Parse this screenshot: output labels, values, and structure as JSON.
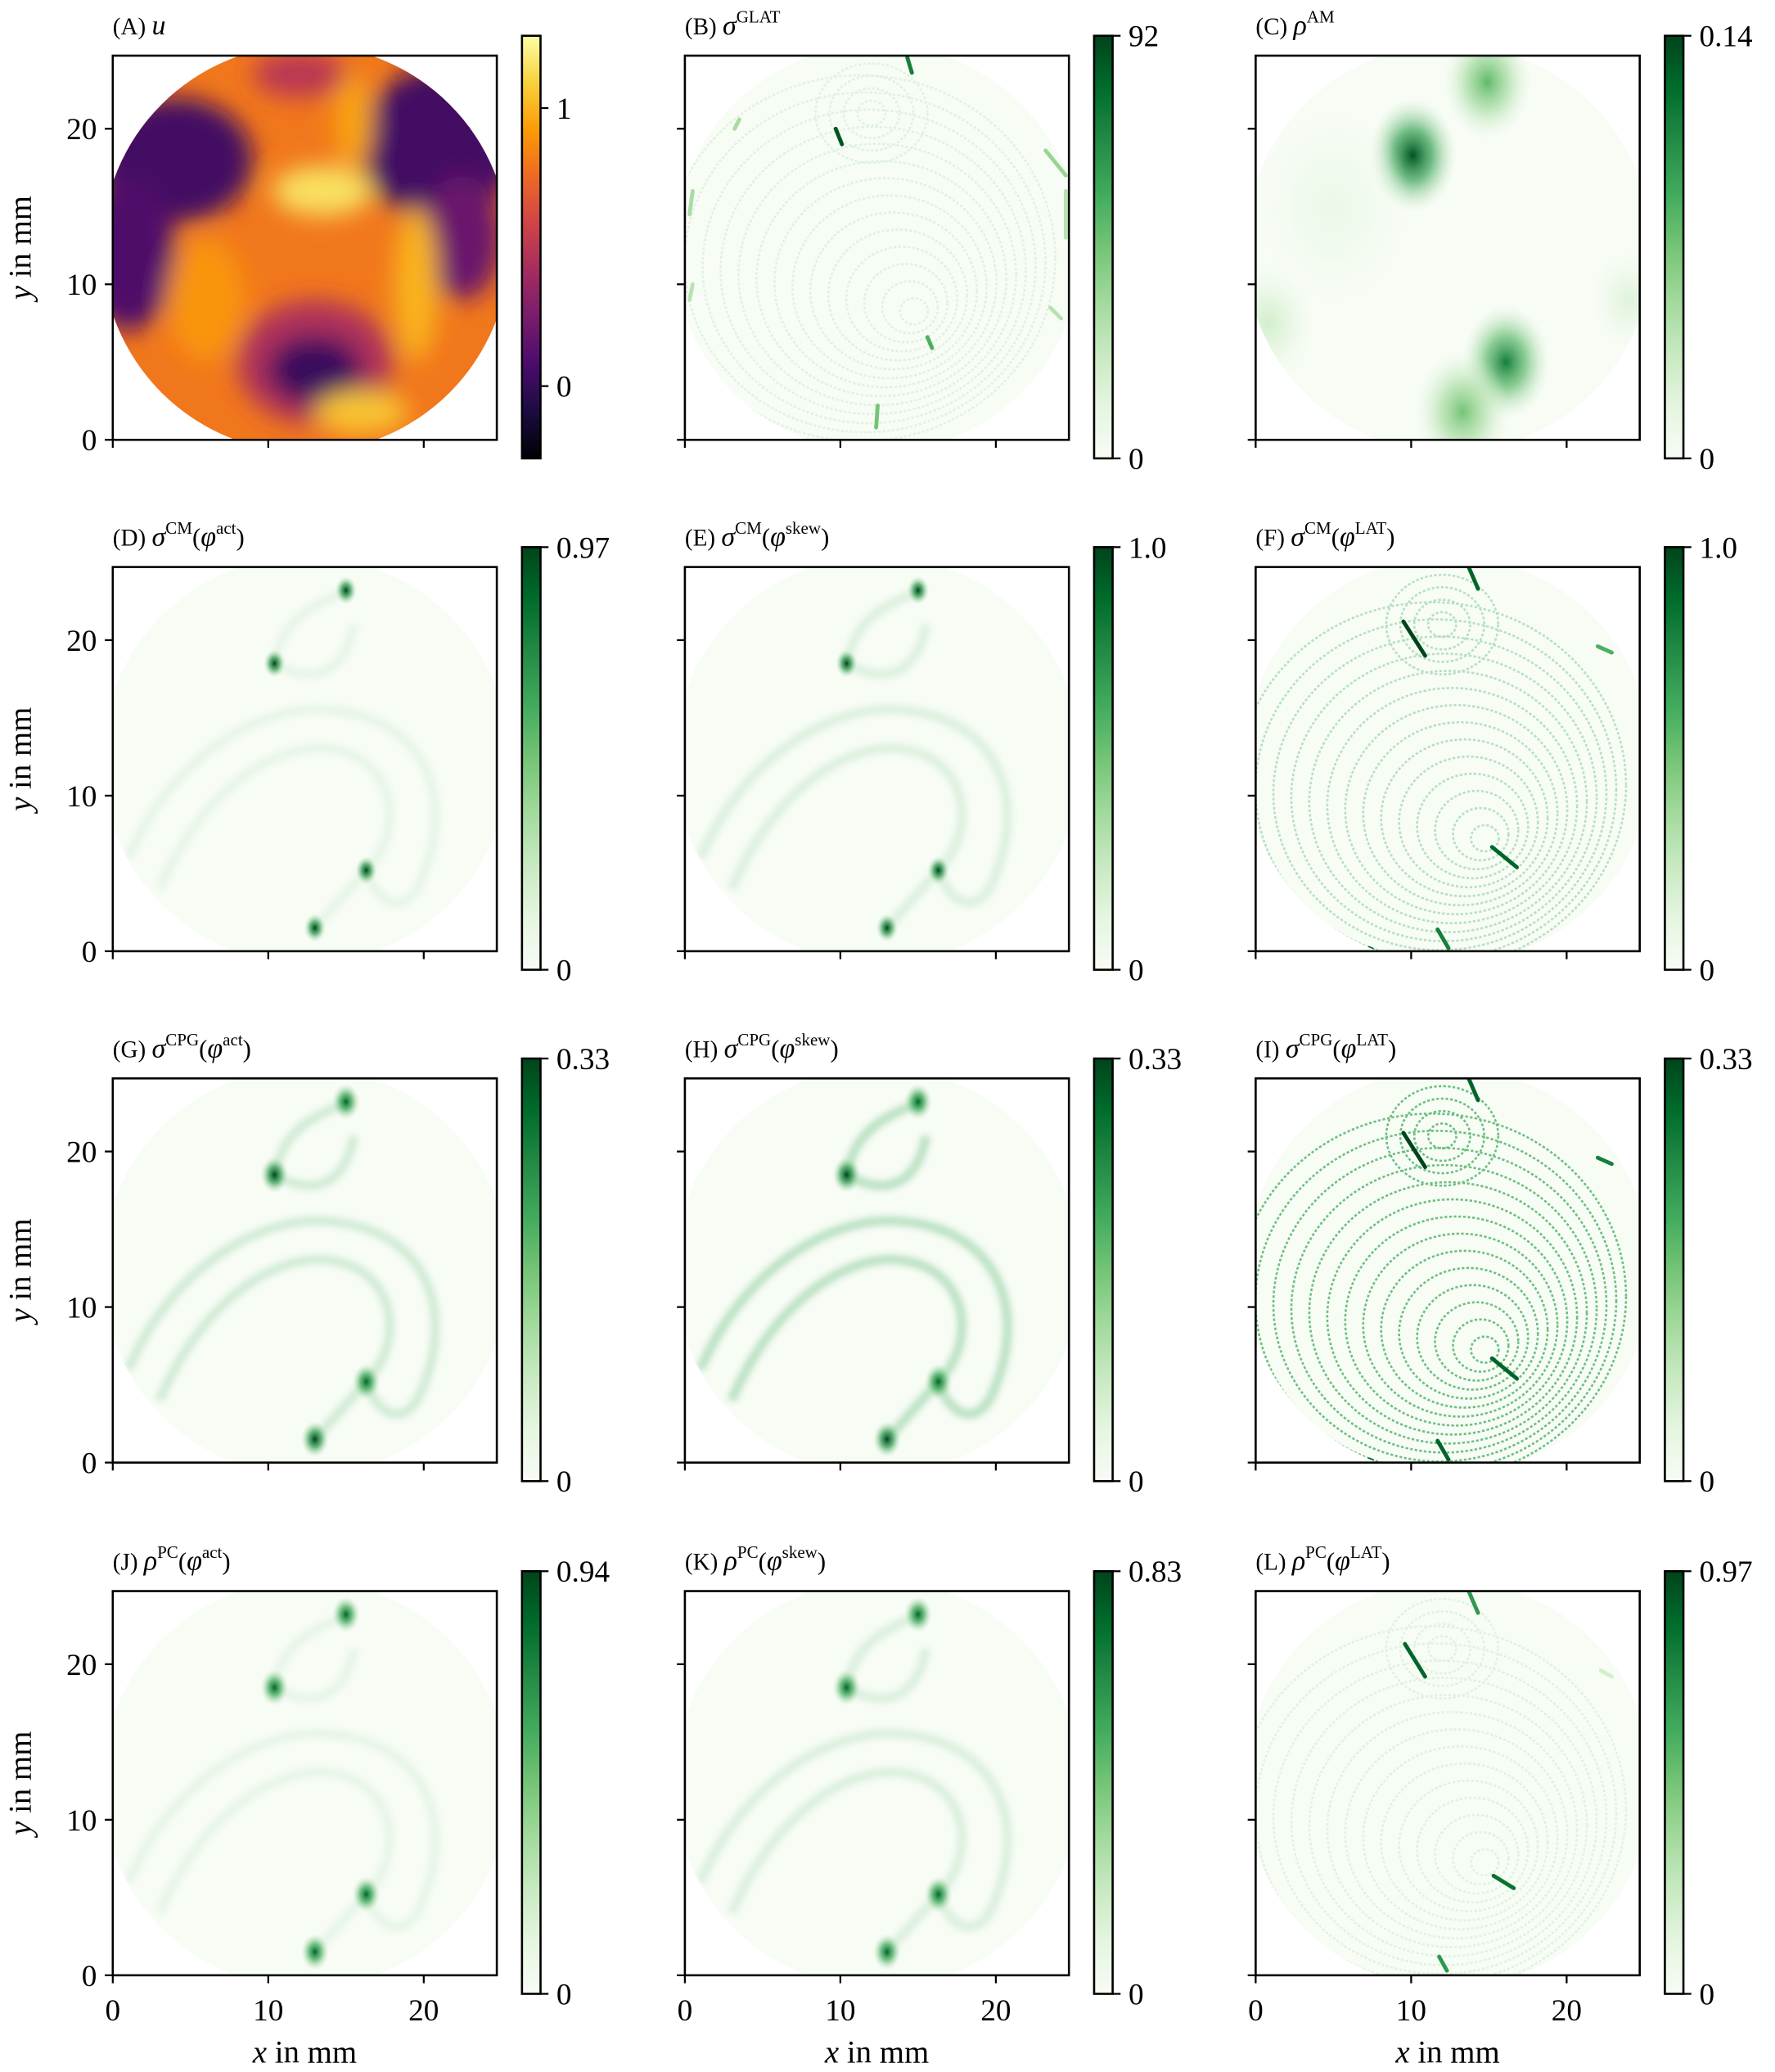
{
  "chart_data": [
    {
      "id": "A",
      "type": "heatmap",
      "cmap": "inferno",
      "clim": [
        -0.26,
        1.26
      ],
      "colorbar_ticks": [
        "0",
        "1"
      ],
      "colorbar_tick_values": [
        0,
        1
      ],
      "title": {
        "prefix": "(A)",
        "sym": "u",
        "sup": ""
      },
      "xlim": [
        0,
        24.7
      ],
      "ylim": [
        0,
        24.7
      ],
      "xticks": [
        "0",
        "10",
        "20"
      ],
      "yticks": [
        "0",
        "10",
        "20"
      ],
      "show_xticklabels": false,
      "show_yticklabels": true,
      "xlabel": "",
      "ylabel": "y in mm",
      "base_value": 0.8,
      "blobs": [
        {
          "x": 4,
          "y": 18,
          "rx": 5,
          "ry": 4,
          "value": 0.05
        },
        {
          "x": 1,
          "y": 12,
          "rx": 3,
          "ry": 5,
          "value": 0.1
        },
        {
          "x": 21,
          "y": 19,
          "rx": 5,
          "ry": 5,
          "value": 0.05
        },
        {
          "x": 22.5,
          "y": 13,
          "rx": 2.5,
          "ry": 4,
          "value": 0.2
        },
        {
          "x": 13,
          "y": 5,
          "rx": 5,
          "ry": 4,
          "value": 0.45
        },
        {
          "x": 13,
          "y": 4.5,
          "rx": 3,
          "ry": 2.2,
          "value": 0.02
        },
        {
          "x": 12,
          "y": 23.5,
          "rx": 3,
          "ry": 1.5,
          "value": 0.5
        },
        {
          "x": 13.5,
          "y": 16,
          "rx": 3.2,
          "ry": 1.6,
          "value": 1.15
        },
        {
          "x": 19.5,
          "y": 10,
          "rx": 1.4,
          "ry": 5,
          "value": 1.0
        },
        {
          "x": 16,
          "y": 1.8,
          "rx": 3,
          "ry": 1.4,
          "value": 1.05
        },
        {
          "x": 15.5,
          "y": 20.5,
          "rx": 1.2,
          "ry": 3,
          "value": 0.95
        },
        {
          "x": 6,
          "y": 9,
          "rx": 2.5,
          "ry": 4,
          "value": 0.9
        }
      ]
    },
    {
      "id": "B",
      "type": "heatmap",
      "cmap": "Greens",
      "clim": [
        0,
        92
      ],
      "colorbar_ticks": [
        "0",
        "92"
      ],
      "colorbar_tick_values": [
        0,
        92
      ],
      "title": {
        "prefix": "(B)",
        "sym": "σ",
        "sup": "GLAT"
      },
      "xlim": [
        0,
        24.7
      ],
      "ylim": [
        0,
        24.7
      ],
      "xticks": [
        "0",
        "10",
        "20"
      ],
      "yticks": [
        "0",
        "10",
        "20"
      ],
      "show_xticklabels": false,
      "show_yticklabels": false,
      "xlabel": "",
      "ylabel": "",
      "contours": {
        "cx": 15,
        "cy": 8,
        "count": 14,
        "opacity": 0.12
      },
      "streaks": [
        {
          "x1": 9.7,
          "y1": 20.0,
          "x2": 10.1,
          "y2": 19.0,
          "value": 0.95
        },
        {
          "x1": 14.3,
          "y1": 24.6,
          "x2": 14.6,
          "y2": 23.6,
          "value": 0.8
        },
        {
          "x1": 12.4,
          "y1": 2.2,
          "x2": 12.3,
          "y2": 0.8,
          "value": 0.5
        },
        {
          "x1": 15.6,
          "y1": 6.6,
          "x2": 15.9,
          "y2": 5.9,
          "value": 0.6
        },
        {
          "x1": 23.2,
          "y1": 18.6,
          "x2": 24.5,
          "y2": 17.0,
          "value": 0.4
        },
        {
          "x1": 0.5,
          "y1": 16,
          "x2": 0.3,
          "y2": 14.5,
          "value": 0.35
        },
        {
          "x1": 3.5,
          "y1": 20.6,
          "x2": 3.2,
          "y2": 20.0,
          "value": 0.35
        },
        {
          "x1": 24.5,
          "y1": 16,
          "x2": 24.5,
          "y2": 13,
          "value": 0.3
        },
        {
          "x1": 23.5,
          "y1": 8.5,
          "x2": 24.2,
          "y2": 7.8,
          "value": 0.3
        },
        {
          "x1": 0.5,
          "y1": 10,
          "x2": 0.3,
          "y2": 9,
          "value": 0.3
        }
      ],
      "spots": []
    },
    {
      "id": "C",
      "type": "heatmap",
      "cmap": "Greens",
      "clim": [
        0,
        0.14
      ],
      "colorbar_ticks": [
        "0",
        "0.14"
      ],
      "colorbar_tick_values": [
        0,
        0.14
      ],
      "title": {
        "prefix": "(C)",
        "sym": "ρ",
        "sup": "AM"
      },
      "xlim": [
        0,
        24.7
      ],
      "ylim": [
        0,
        24.7
      ],
      "xticks": [
        "0",
        "10",
        "20"
      ],
      "yticks": [
        "0",
        "10",
        "20"
      ],
      "show_xticklabels": false,
      "show_yticklabels": false,
      "xlabel": "",
      "ylabel": "",
      "spots": [
        {
          "x": 10.1,
          "y": 18.3,
          "r": 1.4,
          "value": 0.95
        },
        {
          "x": 14.9,
          "y": 23.0,
          "r": 1.4,
          "value": 0.55
        },
        {
          "x": 16.1,
          "y": 5.0,
          "r": 1.4,
          "value": 0.8
        },
        {
          "x": 13.3,
          "y": 1.8,
          "r": 1.5,
          "value": 0.5
        },
        {
          "x": 0.8,
          "y": 7.5,
          "r": 1.5,
          "value": 0.2
        },
        {
          "x": 24,
          "y": 9,
          "r": 1.2,
          "value": 0.15
        },
        {
          "x": 5,
          "y": 15,
          "r": 2.5,
          "value": 0.08
        }
      ],
      "streaks": []
    },
    {
      "id": "D",
      "type": "heatmap",
      "cmap": "Greens",
      "clim": [
        0,
        0.97
      ],
      "colorbar_ticks": [
        "0",
        "0.97"
      ],
      "colorbar_tick_values": [
        0,
        0.97
      ],
      "title": {
        "prefix": "(D)",
        "sym": "σ",
        "sup": "CM",
        "arg_sym": "φ",
        "arg_sup": "act"
      },
      "xlim": [
        0,
        24.7
      ],
      "ylim": [
        0,
        24.7
      ],
      "xticks": [
        "0",
        "10",
        "20"
      ],
      "yticks": [
        "0",
        "10",
        "20"
      ],
      "show_xticklabels": false,
      "show_yticklabels": true,
      "xlabel": "",
      "ylabel": "y in mm",
      "bands": {
        "opacity": 0.08
      },
      "spots": [
        {
          "x": 15.0,
          "y": 23.2,
          "r": 0.35,
          "value": 1
        },
        {
          "x": 10.4,
          "y": 18.5,
          "r": 0.35,
          "value": 1
        },
        {
          "x": 16.3,
          "y": 5.2,
          "r": 0.35,
          "value": 1
        },
        {
          "x": 13.0,
          "y": 1.5,
          "r": 0.35,
          "value": 1
        }
      ],
      "streaks": []
    },
    {
      "id": "E",
      "type": "heatmap",
      "cmap": "Greens",
      "clim": [
        0,
        1.0
      ],
      "colorbar_ticks": [
        "0",
        "1.0"
      ],
      "colorbar_tick_values": [
        0,
        1.0
      ],
      "title": {
        "prefix": "(E)",
        "sym": "σ",
        "sup": "CM",
        "arg_sym": "φ",
        "arg_sup": "skew"
      },
      "xlim": [
        0,
        24.7
      ],
      "ylim": [
        0,
        24.7
      ],
      "xticks": [
        "0",
        "10",
        "20"
      ],
      "yticks": [
        "0",
        "10",
        "20"
      ],
      "show_xticklabels": false,
      "show_yticklabels": false,
      "xlabel": "",
      "ylabel": "",
      "bands": {
        "opacity": 0.14
      },
      "spots": [
        {
          "x": 15.0,
          "y": 23.2,
          "r": 0.35,
          "value": 1
        },
        {
          "x": 10.4,
          "y": 18.5,
          "r": 0.35,
          "value": 1
        },
        {
          "x": 16.3,
          "y": 5.2,
          "r": 0.35,
          "value": 1
        },
        {
          "x": 13.0,
          "y": 1.5,
          "r": 0.35,
          "value": 1
        }
      ],
      "streaks": []
    },
    {
      "id": "F",
      "type": "heatmap",
      "cmap": "Greens",
      "clim": [
        0,
        1.0
      ],
      "colorbar_ticks": [
        "0",
        "1.0"
      ],
      "colorbar_tick_values": [
        0,
        1.0
      ],
      "title": {
        "prefix": "(F)",
        "sym": "σ",
        "sup": "CM",
        "arg_sym": "φ",
        "arg_sup": "LAT"
      },
      "xlim": [
        0,
        24.7
      ],
      "ylim": [
        0,
        24.7
      ],
      "xticks": [
        "0",
        "10",
        "20"
      ],
      "yticks": [
        "0",
        "10",
        "20"
      ],
      "show_xticklabels": false,
      "show_yticklabels": false,
      "xlabel": "",
      "ylabel": "",
      "contours": {
        "cx": 15,
        "cy": 7,
        "count": 14,
        "opacity": 0.35
      },
      "streaks": [
        {
          "x1": 9.5,
          "y1": 21.2,
          "x2": 10.9,
          "y2": 19.0,
          "value": 1
        },
        {
          "x1": 13.7,
          "y1": 24.7,
          "x2": 14.3,
          "y2": 23.3,
          "value": 0.9
        },
        {
          "x1": 15.2,
          "y1": 6.7,
          "x2": 16.8,
          "y2": 5.4,
          "value": 0.9
        },
        {
          "x1": 11.7,
          "y1": 1.4,
          "x2": 12.4,
          "y2": 0.2,
          "value": 0.8
        },
        {
          "x1": 22.0,
          "y1": 19.6,
          "x2": 22.9,
          "y2": 19.2,
          "value": 0.6
        },
        {
          "x1": 0.9,
          "y1": 21.3,
          "x2": 1.1,
          "y2": 21.0,
          "value": 0.8
        },
        {
          "x1": 7.3,
          "y1": 0.2,
          "x2": 7.5,
          "y2": 0.1,
          "value": 0.9
        }
      ],
      "spots": []
    },
    {
      "id": "G",
      "type": "heatmap",
      "cmap": "Greens",
      "clim": [
        0,
        0.33
      ],
      "colorbar_ticks": [
        "0",
        "0.33"
      ],
      "colorbar_tick_values": [
        0,
        0.33
      ],
      "title": {
        "prefix": "(G)",
        "sym": "σ",
        "sup": "CPG",
        "arg_sym": "φ",
        "arg_sup": "act"
      },
      "xlim": [
        0,
        24.7
      ],
      "ylim": [
        0,
        24.7
      ],
      "xticks": [
        "0",
        "10",
        "20"
      ],
      "yticks": [
        "0",
        "10",
        "20"
      ],
      "show_xticklabels": false,
      "show_yticklabels": true,
      "xlabel": "",
      "ylabel": "y in mm",
      "bands": {
        "opacity": 0.2
      },
      "spots": [
        {
          "x": 15.0,
          "y": 23.2,
          "r": 0.45,
          "value": 0.9
        },
        {
          "x": 10.4,
          "y": 18.5,
          "r": 0.45,
          "value": 1
        },
        {
          "x": 16.3,
          "y": 5.2,
          "r": 0.45,
          "value": 0.9
        },
        {
          "x": 13.0,
          "y": 1.5,
          "r": 0.45,
          "value": 1
        }
      ],
      "streaks": []
    },
    {
      "id": "H",
      "type": "heatmap",
      "cmap": "Greens",
      "clim": [
        0,
        0.33
      ],
      "colorbar_ticks": [
        "0",
        "0.33"
      ],
      "colorbar_tick_values": [
        0,
        0.33
      ],
      "title": {
        "prefix": "(H)",
        "sym": "σ",
        "sup": "CPG",
        "arg_sym": "φ",
        "arg_sup": "skew"
      },
      "xlim": [
        0,
        24.7
      ],
      "ylim": [
        0,
        24.7
      ],
      "xticks": [
        "0",
        "10",
        "20"
      ],
      "yticks": [
        "0",
        "10",
        "20"
      ],
      "show_xticklabels": false,
      "show_yticklabels": false,
      "xlabel": "",
      "ylabel": "",
      "bands": {
        "opacity": 0.32
      },
      "spots": [
        {
          "x": 15.0,
          "y": 23.2,
          "r": 0.45,
          "value": 0.9
        },
        {
          "x": 10.4,
          "y": 18.5,
          "r": 0.45,
          "value": 1
        },
        {
          "x": 16.3,
          "y": 5.2,
          "r": 0.45,
          "value": 0.9
        },
        {
          "x": 13.0,
          "y": 1.5,
          "r": 0.45,
          "value": 1
        }
      ],
      "streaks": []
    },
    {
      "id": "I",
      "type": "heatmap",
      "cmap": "Greens",
      "clim": [
        0,
        0.33
      ],
      "colorbar_ticks": [
        "0",
        "0.33"
      ],
      "colorbar_tick_values": [
        0,
        0.33
      ],
      "title": {
        "prefix": "(I)",
        "sym": "σ",
        "sup": "CPG",
        "arg_sym": "φ",
        "arg_sup": "LAT"
      },
      "xlim": [
        0,
        24.7
      ],
      "ylim": [
        0,
        24.7
      ],
      "xticks": [
        "0",
        "10",
        "20"
      ],
      "yticks": [
        "0",
        "10",
        "20"
      ],
      "show_xticklabels": false,
      "show_yticklabels": false,
      "xlabel": "",
      "ylabel": "",
      "contours": {
        "cx": 15,
        "cy": 7,
        "count": 14,
        "opacity": 0.75
      },
      "streaks": [
        {
          "x1": 9.5,
          "y1": 21.2,
          "x2": 10.9,
          "y2": 19.0,
          "value": 1
        },
        {
          "x1": 13.7,
          "y1": 24.7,
          "x2": 14.3,
          "y2": 23.3,
          "value": 0.9
        },
        {
          "x1": 15.2,
          "y1": 6.7,
          "x2": 16.8,
          "y2": 5.4,
          "value": 0.9
        },
        {
          "x1": 11.7,
          "y1": 1.4,
          "x2": 12.4,
          "y2": 0.2,
          "value": 0.9
        },
        {
          "x1": 22.0,
          "y1": 19.6,
          "x2": 22.9,
          "y2": 19.2,
          "value": 0.8
        },
        {
          "x1": 0.9,
          "y1": 21.3,
          "x2": 1.1,
          "y2": 21.0,
          "value": 0.8
        },
        {
          "x1": 7.3,
          "y1": 0.2,
          "x2": 7.5,
          "y2": 0.1,
          "value": 0.9
        }
      ],
      "spots": []
    },
    {
      "id": "J",
      "type": "heatmap",
      "cmap": "Greens",
      "clim": [
        0,
        0.94
      ],
      "colorbar_ticks": [
        "0",
        "0.94"
      ],
      "colorbar_tick_values": [
        0,
        0.94
      ],
      "title": {
        "prefix": "(J)",
        "sym": "ρ",
        "sup": "PC",
        "arg_sym": "φ",
        "arg_sup": "act"
      },
      "xlim": [
        0,
        24.7
      ],
      "ylim": [
        0,
        24.7
      ],
      "xticks": [
        "0",
        "10",
        "20"
      ],
      "yticks": [
        "0",
        "10",
        "20"
      ],
      "show_xticklabels": true,
      "show_yticklabels": true,
      "xlabel": "x in mm",
      "ylabel": "y in mm",
      "bands": {
        "opacity": 0.08
      },
      "spots": [
        {
          "x": 15.0,
          "y": 23.2,
          "r": 0.45,
          "value": 0.9
        },
        {
          "x": 10.4,
          "y": 18.5,
          "r": 0.45,
          "value": 0.9
        },
        {
          "x": 16.3,
          "y": 5.2,
          "r": 0.45,
          "value": 0.9
        },
        {
          "x": 13.0,
          "y": 1.5,
          "r": 0.45,
          "value": 0.9
        }
      ],
      "streaks": []
    },
    {
      "id": "K",
      "type": "heatmap",
      "cmap": "Greens",
      "clim": [
        0,
        0.83
      ],
      "colorbar_ticks": [
        "0",
        "0.83"
      ],
      "colorbar_tick_values": [
        0,
        0.83
      ],
      "title": {
        "prefix": "(K)",
        "sym": "ρ",
        "sup": "PC",
        "arg_sym": "φ",
        "arg_sup": "skew"
      },
      "xlim": [
        0,
        24.7
      ],
      "ylim": [
        0,
        24.7
      ],
      "xticks": [
        "0",
        "10",
        "20"
      ],
      "yticks": [
        "0",
        "10",
        "20"
      ],
      "show_xticklabels": true,
      "show_yticklabels": false,
      "xlabel": "x in mm",
      "ylabel": "",
      "bands": {
        "opacity": 0.15
      },
      "spots": [
        {
          "x": 15.0,
          "y": 23.2,
          "r": 0.45,
          "value": 0.9
        },
        {
          "x": 10.4,
          "y": 18.5,
          "r": 0.45,
          "value": 0.9
        },
        {
          "x": 16.3,
          "y": 5.2,
          "r": 0.45,
          "value": 0.9
        },
        {
          "x": 13.0,
          "y": 1.5,
          "r": 0.45,
          "value": 0.9
        }
      ],
      "streaks": []
    },
    {
      "id": "L",
      "type": "heatmap",
      "cmap": "Greens",
      "clim": [
        0,
        0.97
      ],
      "colorbar_ticks": [
        "0",
        "0.97"
      ],
      "colorbar_tick_values": [
        0,
        0.97
      ],
      "title": {
        "prefix": "(L)",
        "sym": "ρ",
        "sup": "PC",
        "arg_sym": "φ",
        "arg_sup": "LAT"
      },
      "xlim": [
        0,
        24.7
      ],
      "ylim": [
        0,
        24.7
      ],
      "xticks": [
        "0",
        "10",
        "20"
      ],
      "yticks": [
        "0",
        "10",
        "20"
      ],
      "show_xticklabels": true,
      "show_yticklabels": false,
      "xlabel": "x in mm",
      "ylabel": "",
      "contours": {
        "cx": 15,
        "cy": 7,
        "count": 14,
        "opacity": 0.12
      },
      "streaks": [
        {
          "x1": 9.6,
          "y1": 21.3,
          "x2": 10.9,
          "y2": 19.2,
          "value": 0.9
        },
        {
          "x1": 13.7,
          "y1": 24.7,
          "x2": 14.3,
          "y2": 23.3,
          "value": 0.7
        },
        {
          "x1": 15.3,
          "y1": 6.4,
          "x2": 16.6,
          "y2": 5.6,
          "value": 0.85
        },
        {
          "x1": 11.8,
          "y1": 1.2,
          "x2": 12.3,
          "y2": 0.3,
          "value": 0.7
        },
        {
          "x1": 22.2,
          "y1": 19.6,
          "x2": 22.9,
          "y2": 19.2,
          "value": 0.2
        },
        {
          "x1": 0.8,
          "y1": 21.3,
          "x2": 1.1,
          "y2": 21.0,
          "value": 0.5
        }
      ],
      "spots": []
    }
  ]
}
